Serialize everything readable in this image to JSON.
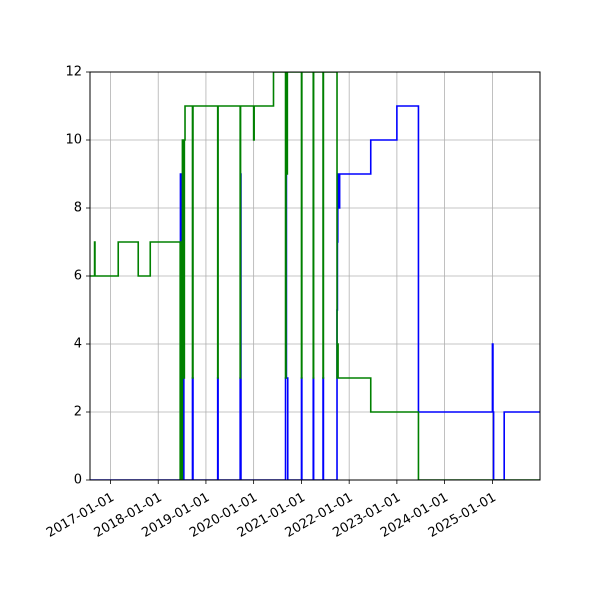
{
  "chart_data": {
    "type": "line",
    "title": "",
    "xlabel": "",
    "ylabel": "",
    "xlim": [
      "2016-07-28",
      "2025-12-31"
    ],
    "ylim": [
      0,
      12
    ],
    "grid": true,
    "step": "post",
    "x_ticks": [
      "2017-01-01",
      "2018-01-01",
      "2019-01-01",
      "2020-01-01",
      "2021-01-01",
      "2022-01-01",
      "2023-01-01",
      "2024-01-01",
      "2025-01-01"
    ],
    "y_ticks": [
      "0",
      "2",
      "4",
      "6",
      "8",
      "10",
      "12"
    ],
    "series": [
      {
        "color": "#0000ff",
        "points": [
          [
            "2016-07-28",
            0
          ],
          [
            "2018-06-20",
            0
          ],
          [
            "2018-06-20",
            9
          ],
          [
            "2018-06-25",
            3
          ],
          [
            "2018-07-01",
            9
          ],
          [
            "2018-07-06",
            0
          ],
          [
            "2018-07-08",
            3
          ],
          [
            "2018-07-12",
            9
          ],
          [
            "2018-07-16",
            0
          ],
          [
            "2018-09-20",
            3
          ],
          [
            "2018-09-24",
            0
          ],
          [
            "2019-04-01",
            3
          ],
          [
            "2019-04-04",
            0
          ],
          [
            "2019-09-20",
            3
          ],
          [
            "2019-09-23",
            9
          ],
          [
            "2019-09-26",
            0
          ],
          [
            "2020-09-01",
            3
          ],
          [
            "2020-09-05",
            9
          ],
          [
            "2020-09-08",
            3
          ],
          [
            "2020-09-18",
            0
          ],
          [
            "2021-01-01",
            3
          ],
          [
            "2021-01-04",
            0
          ],
          [
            "2021-04-01",
            3
          ],
          [
            "2021-04-04",
            0
          ],
          [
            "2021-06-15",
            3
          ],
          [
            "2021-06-18",
            0
          ],
          [
            "2021-09-30",
            5
          ],
          [
            "2021-10-03",
            7
          ],
          [
            "2021-10-06",
            9
          ],
          [
            "2021-10-09",
            8
          ],
          [
            "2021-10-20",
            9
          ],
          [
            "2022-06-15",
            10
          ],
          [
            "2023-01-01",
            11
          ],
          [
            "2023-06-15",
            2
          ],
          [
            "2025-01-01",
            4
          ],
          [
            "2025-01-05",
            2
          ],
          [
            "2025-01-10",
            0
          ],
          [
            "2025-04-01",
            2
          ],
          [
            "2025-12-31",
            2
          ]
        ]
      },
      {
        "color": "#008000",
        "points": [
          [
            "2016-07-28",
            6
          ],
          [
            "2016-09-01",
            7
          ],
          [
            "2016-09-04",
            6
          ],
          [
            "2017-03-01",
            7
          ],
          [
            "2017-08-01",
            6
          ],
          [
            "2017-11-01",
            7
          ],
          [
            "2018-06-18",
            0
          ],
          [
            "2018-06-22",
            7
          ],
          [
            "2018-06-26",
            3
          ],
          [
            "2018-07-02",
            0
          ],
          [
            "2018-07-05",
            10
          ],
          [
            "2018-07-10",
            3
          ],
          [
            "2018-07-20",
            10
          ],
          [
            "2018-07-25",
            11
          ],
          [
            "2018-09-20",
            3
          ],
          [
            "2018-09-24",
            11
          ],
          [
            "2019-04-01",
            3
          ],
          [
            "2019-04-04",
            11
          ],
          [
            "2019-09-20",
            3
          ],
          [
            "2019-09-23",
            11
          ],
          [
            "2020-01-01",
            10
          ],
          [
            "2020-01-05",
            11
          ],
          [
            "2020-06-01",
            12
          ],
          [
            "2020-09-01",
            3
          ],
          [
            "2020-09-05",
            12
          ],
          [
            "2020-09-08",
            9
          ],
          [
            "2020-09-15",
            12
          ],
          [
            "2021-01-01",
            3
          ],
          [
            "2021-01-04",
            12
          ],
          [
            "2021-04-01",
            3
          ],
          [
            "2021-04-04",
            12
          ],
          [
            "2021-06-15",
            3
          ],
          [
            "2021-06-18",
            12
          ],
          [
            "2021-09-30",
            3
          ],
          [
            "2021-10-04",
            4
          ],
          [
            "2021-10-08",
            3
          ],
          [
            "2022-06-15",
            2
          ],
          [
            "2023-06-15",
            0
          ],
          [
            "2025-12-31",
            0
          ]
        ]
      }
    ]
  }
}
